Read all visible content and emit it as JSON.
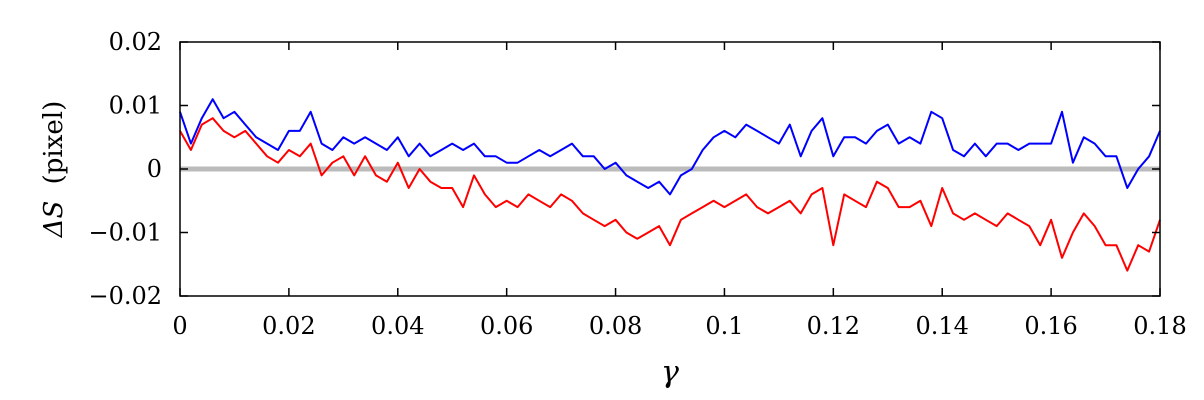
{
  "chart_data": {
    "type": "line",
    "title": "",
    "xlabel": "γ",
    "ylabel": {
      "math": "ΔS",
      "unit": "(pixel)"
    },
    "xlim": [
      0,
      0.18
    ],
    "ylim": [
      -0.02,
      0.02
    ],
    "grid": false,
    "legend": "none",
    "x_ticks": [
      0,
      0.02,
      0.04,
      0.06,
      0.08,
      0.1,
      0.12,
      0.14,
      0.16,
      0.18
    ],
    "x_tick_labels": [
      "0",
      "0.02",
      "0.04",
      "0.06",
      "0.08",
      "0.1",
      "0.12",
      "0.14",
      "0.16",
      "0.18"
    ],
    "y_ticks": [
      -0.02,
      -0.01,
      0,
      0.01,
      0.02
    ],
    "y_tick_labels": [
      "−0.02",
      "−0.01",
      "0",
      "0.01",
      "0.02"
    ],
    "reference_line": {
      "y": 0,
      "color": "#bbbbbb"
    },
    "series": [
      {
        "color": "#0000ff",
        "x": [
          0,
          0.002,
          0.004,
          0.006,
          0.008,
          0.01,
          0.012,
          0.014,
          0.016,
          0.018,
          0.02,
          0.022,
          0.024,
          0.026,
          0.028,
          0.03,
          0.032,
          0.034,
          0.036,
          0.038,
          0.04,
          0.042,
          0.044,
          0.046,
          0.048,
          0.05,
          0.052,
          0.054,
          0.056,
          0.058,
          0.06,
          0.062,
          0.064,
          0.066,
          0.068,
          0.07,
          0.072,
          0.074,
          0.076,
          0.078,
          0.08,
          0.082,
          0.084,
          0.086,
          0.088,
          0.09,
          0.092,
          0.094,
          0.096,
          0.098,
          0.1,
          0.102,
          0.104,
          0.106,
          0.108,
          0.11,
          0.112,
          0.114,
          0.116,
          0.118,
          0.12,
          0.122,
          0.124,
          0.126,
          0.128,
          0.13,
          0.132,
          0.134,
          0.136,
          0.138,
          0.14,
          0.142,
          0.144,
          0.146,
          0.148,
          0.15,
          0.152,
          0.154,
          0.156,
          0.158,
          0.16,
          0.162,
          0.164,
          0.166,
          0.168,
          0.17,
          0.172,
          0.174,
          0.176,
          0.178,
          0.18
        ],
        "y": [
          0.009,
          0.004,
          0.008,
          0.011,
          0.008,
          0.009,
          0.007,
          0.005,
          0.004,
          0.003,
          0.006,
          0.006,
          0.009,
          0.004,
          0.003,
          0.005,
          0.004,
          0.005,
          0.004,
          0.003,
          0.005,
          0.002,
          0.004,
          0.002,
          0.003,
          0.004,
          0.003,
          0.004,
          0.002,
          0.002,
          0.001,
          0.001,
          0.002,
          0.003,
          0.002,
          0.003,
          0.004,
          0.002,
          0.002,
          0.0,
          0.001,
          -0.001,
          -0.002,
          -0.003,
          -0.002,
          -0.004,
          -0.001,
          0.0,
          0.003,
          0.005,
          0.006,
          0.005,
          0.007,
          0.006,
          0.005,
          0.004,
          0.007,
          0.002,
          0.006,
          0.008,
          0.002,
          0.005,
          0.005,
          0.004,
          0.006,
          0.007,
          0.004,
          0.005,
          0.004,
          0.009,
          0.008,
          0.003,
          0.002,
          0.004,
          0.002,
          0.004,
          0.004,
          0.003,
          0.004,
          0.004,
          0.004,
          0.009,
          0.001,
          0.005,
          0.004,
          0.002,
          0.002,
          -0.003,
          0.0,
          0.002,
          0.006
        ]
      },
      {
        "color": "#ff0000",
        "x": [
          0,
          0.002,
          0.004,
          0.006,
          0.008,
          0.01,
          0.012,
          0.014,
          0.016,
          0.018,
          0.02,
          0.022,
          0.024,
          0.026,
          0.028,
          0.03,
          0.032,
          0.034,
          0.036,
          0.038,
          0.04,
          0.042,
          0.044,
          0.046,
          0.048,
          0.05,
          0.052,
          0.054,
          0.056,
          0.058,
          0.06,
          0.062,
          0.064,
          0.066,
          0.068,
          0.07,
          0.072,
          0.074,
          0.076,
          0.078,
          0.08,
          0.082,
          0.084,
          0.086,
          0.088,
          0.09,
          0.092,
          0.094,
          0.096,
          0.098,
          0.1,
          0.102,
          0.104,
          0.106,
          0.108,
          0.11,
          0.112,
          0.114,
          0.116,
          0.118,
          0.12,
          0.122,
          0.124,
          0.126,
          0.128,
          0.13,
          0.132,
          0.134,
          0.136,
          0.138,
          0.14,
          0.142,
          0.144,
          0.146,
          0.148,
          0.15,
          0.152,
          0.154,
          0.156,
          0.158,
          0.16,
          0.162,
          0.164,
          0.166,
          0.168,
          0.17,
          0.172,
          0.174,
          0.176,
          0.178,
          0.18
        ],
        "y": [
          0.006,
          0.003,
          0.007,
          0.008,
          0.006,
          0.005,
          0.006,
          0.004,
          0.002,
          0.001,
          0.003,
          0.002,
          0.004,
          -0.001,
          0.001,
          0.002,
          -0.001,
          0.002,
          -0.001,
          -0.002,
          0.001,
          -0.003,
          0.0,
          -0.002,
          -0.003,
          -0.003,
          -0.006,
          -0.001,
          -0.004,
          -0.006,
          -0.005,
          -0.006,
          -0.004,
          -0.005,
          -0.006,
          -0.004,
          -0.005,
          -0.007,
          -0.008,
          -0.009,
          -0.008,
          -0.01,
          -0.011,
          -0.01,
          -0.009,
          -0.012,
          -0.008,
          -0.007,
          -0.006,
          -0.005,
          -0.006,
          -0.005,
          -0.004,
          -0.006,
          -0.007,
          -0.006,
          -0.005,
          -0.007,
          -0.004,
          -0.003,
          -0.012,
          -0.004,
          -0.005,
          -0.006,
          -0.002,
          -0.003,
          -0.006,
          -0.006,
          -0.005,
          -0.009,
          -0.003,
          -0.007,
          -0.008,
          -0.007,
          -0.008,
          -0.009,
          -0.007,
          -0.008,
          -0.009,
          -0.012,
          -0.008,
          -0.014,
          -0.01,
          -0.007,
          -0.009,
          -0.012,
          -0.012,
          -0.016,
          -0.012,
          -0.013,
          -0.008
        ]
      }
    ]
  }
}
